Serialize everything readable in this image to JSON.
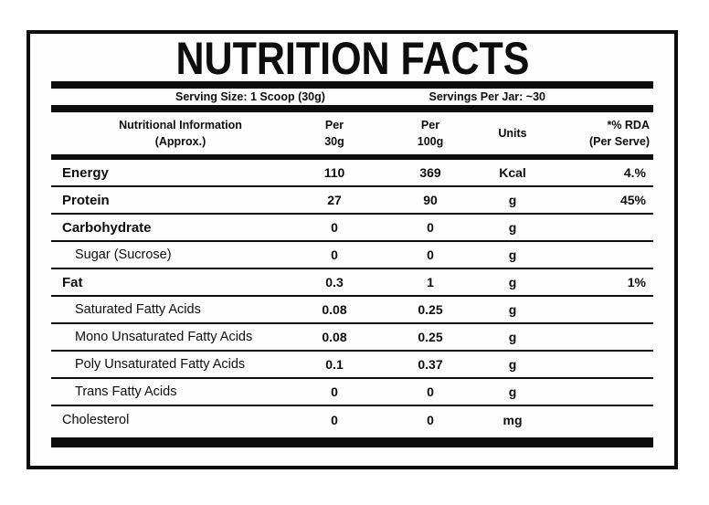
{
  "colors": {
    "ink": "#0d0d0d",
    "paper": "#fdfdfd"
  },
  "title": "NUTRITION FACTS",
  "serving_info": {
    "serving_size": "Serving Size: 1 Scoop (30g)",
    "servings_per_jar": "Servings Per Jar: ~30"
  },
  "table": {
    "columns": {
      "info_line1": "Nutritional Information",
      "info_line2": "(Approx.)",
      "per30_line1": "Per",
      "per30_line2": "30g",
      "per100_line1": "Per",
      "per100_line2": "100g",
      "units": "Units",
      "rda_line1": "*% RDA",
      "rda_line2": "(Per Serve)"
    },
    "rows": [
      {
        "label": "Energy",
        "per_30g": "110",
        "per_100g": "369",
        "units": "Kcal",
        "rda": "4.%"
      },
      {
        "label": "Protein",
        "per_30g": "27",
        "per_100g": "90",
        "units": "g",
        "rda": "45%"
      },
      {
        "label": "Carbohydrate",
        "per_30g": "0",
        "per_100g": "0",
        "units": "g",
        "rda": ""
      },
      {
        "label": "Sugar (Sucrose)",
        "per_30g": "0",
        "per_100g": "0",
        "units": "g",
        "rda": ""
      },
      {
        "label": "Fat",
        "per_30g": "0.3",
        "per_100g": "1",
        "units": "g",
        "rda": "1%"
      },
      {
        "label": "Saturated Fatty Acids",
        "per_30g": "0.08",
        "per_100g": "0.25",
        "units": "g",
        "rda": ""
      },
      {
        "label": "Mono Unsaturated Fatty Acids",
        "per_30g": "0.08",
        "per_100g": "0.25",
        "units": "g",
        "rda": ""
      },
      {
        "label": "Poly Unsaturated Fatty Acids",
        "per_30g": "0.1",
        "per_100g": "0.37",
        "units": "g",
        "rda": ""
      },
      {
        "label": "Trans Fatty Acids",
        "per_30g": "0",
        "per_100g": "0",
        "units": "g",
        "rda": ""
      },
      {
        "label": "Cholesterol",
        "per_30g": "0",
        "per_100g": "0",
        "units": "mg",
        "rda": ""
      }
    ]
  }
}
